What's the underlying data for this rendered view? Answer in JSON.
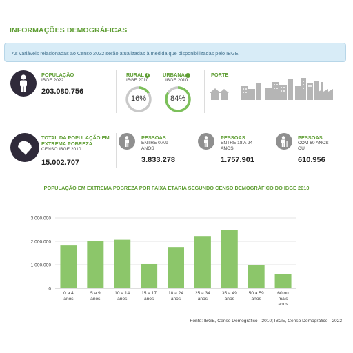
{
  "section_title": "INFORMAÇÕES DEMOGRÁFICAS",
  "banner_text": "As variáveis relacionadas ao Censo 2022 serão atualizadas à medida que disponibilizadas pelo IBGE.",
  "populacao": {
    "label": "POPULAÇÃO",
    "sub": "IBGE 2022",
    "value": "203.080.756",
    "icon": "person-icon"
  },
  "rural": {
    "label": "RURAL",
    "sub": "IBGE 2010",
    "percent_text": "16%",
    "percent": 16
  },
  "urbana": {
    "label": "URBANA",
    "sub": "IBGE 2010",
    "percent_text": "84%",
    "percent": 84
  },
  "porte": {
    "label": "PORTE",
    "icon": "city-size-icons"
  },
  "pobreza": {
    "label_line1": "TOTAL DA POPULAÇÃO EM",
    "label_line2": "EXTREMA POBREZA",
    "sub": "CENSO IBGE 2010",
    "value": "15.002.707",
    "icon": "brazil-map-icon"
  },
  "pessoas_0_9": {
    "label": "PESSOAS",
    "sub_line1": "ENTRE 0 A 9",
    "sub_line2": "ANOS",
    "value": "3.833.278"
  },
  "pessoas_18_24": {
    "label": "PESSOAS",
    "sub_line1": "ENTRE 18 A 24",
    "sub_line2": "ANOS",
    "value": "1.757.901"
  },
  "pessoas_60": {
    "label": "PESSOAS",
    "sub_line1": "COM 60 ANOS",
    "sub_line2": "OU +",
    "value": "610.956"
  },
  "info_icon": "i",
  "colors": {
    "green": "#5f9e34",
    "bar": "#8cc66a",
    "ring_green": "#7cc05a",
    "ring_gray": "#c9c9c9",
    "dark_icon": "#2f2a3a"
  },
  "chart_data": {
    "type": "bar",
    "title": "POPULAÇÃO EM EXTREMA POBREZA POR FAIXA ETÁRIA SEGUNDO CENSO DEMOGRÁFICO DO IBGE 2010",
    "categories": [
      [
        "0 a 4",
        "anos"
      ],
      [
        "5 a 9",
        "anos"
      ],
      [
        "10 a 14",
        "anos"
      ],
      [
        "15 a 17",
        "anos"
      ],
      [
        "18 a 24",
        "anos"
      ],
      [
        "25 a 34",
        "anos"
      ],
      [
        "35 a 49",
        "anos"
      ],
      [
        "50 a 59",
        "anos"
      ],
      [
        "60 ou",
        "mais",
        "anos"
      ]
    ],
    "values": [
      1820000,
      2010000,
      2070000,
      1030000,
      1760000,
      2200000,
      2500000,
      1000000,
      610000
    ],
    "ylim": [
      0,
      3000000
    ],
    "yticks": [
      "0",
      "1.000.000",
      "2.000.000",
      "3.000.000"
    ],
    "xlabel": "",
    "ylabel": "",
    "grid": true
  },
  "source": "Fonte: IBGE, Censo Demográfico - 2010; IBGE, Censo Demográfico - 2022"
}
